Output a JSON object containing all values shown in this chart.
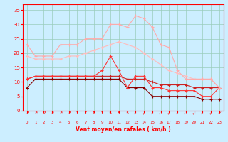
{
  "xlabel": "Vent moyen/en rafales ( km/h )",
  "x": [
    0,
    1,
    2,
    3,
    4,
    5,
    6,
    7,
    8,
    9,
    10,
    11,
    12,
    13,
    14,
    15,
    16,
    17,
    18,
    19,
    20,
    21,
    22,
    23
  ],
  "line1": [
    23,
    19,
    19,
    19,
    23,
    23,
    23,
    25,
    25,
    25,
    30,
    30,
    29,
    33,
    32,
    29,
    23,
    22,
    14,
    11,
    11,
    11,
    11,
    8
  ],
  "line2": [
    19,
    18,
    18,
    18,
    18,
    19,
    19,
    20,
    21,
    22,
    23,
    24,
    23,
    22,
    20,
    18,
    16,
    14,
    13,
    12,
    11,
    11,
    11,
    8
  ],
  "line3": [
    11,
    12,
    12,
    12,
    12,
    12,
    12,
    12,
    12,
    12,
    12,
    12,
    11,
    11,
    11,
    10,
    9,
    9,
    9,
    9,
    8,
    8,
    8,
    8
  ],
  "line4": [
    11,
    12,
    12,
    12,
    12,
    12,
    12,
    12,
    12,
    14,
    19,
    14,
    8,
    12,
    12,
    8,
    8,
    7,
    7,
    7,
    7,
    5,
    5,
    8
  ],
  "line5": [
    8,
    11,
    11,
    11,
    11,
    11,
    11,
    11,
    11,
    11,
    11,
    11,
    8,
    8,
    8,
    5,
    5,
    5,
    5,
    5,
    5,
    4,
    4,
    4
  ],
  "colors": {
    "line1": "#ffaaaa",
    "line2": "#ffbbbb",
    "line3": "#cc2222",
    "line4": "#ff3333",
    "line5": "#880000"
  },
  "bg_color": "#cceeff",
  "grid_color": "#99ccbb",
  "ylim": [
    0,
    37
  ],
  "xlim": [
    -0.5,
    23.5
  ],
  "yticks": [
    0,
    5,
    10,
    15,
    20,
    25,
    30,
    35
  ],
  "xticks": [
    0,
    1,
    2,
    3,
    4,
    5,
    6,
    7,
    8,
    9,
    10,
    11,
    12,
    13,
    14,
    15,
    16,
    17,
    18,
    19,
    20,
    21,
    22,
    23
  ],
  "wind_arrows": [
    "↗",
    "↗",
    "↗",
    "↗",
    "↗",
    "↗",
    "↑",
    "↑",
    "↑",
    "↑",
    "↖",
    "↖",
    "↖",
    "←",
    "←",
    "←",
    "←",
    "←",
    "←",
    "←",
    "←",
    "←",
    "←",
    "↙"
  ]
}
